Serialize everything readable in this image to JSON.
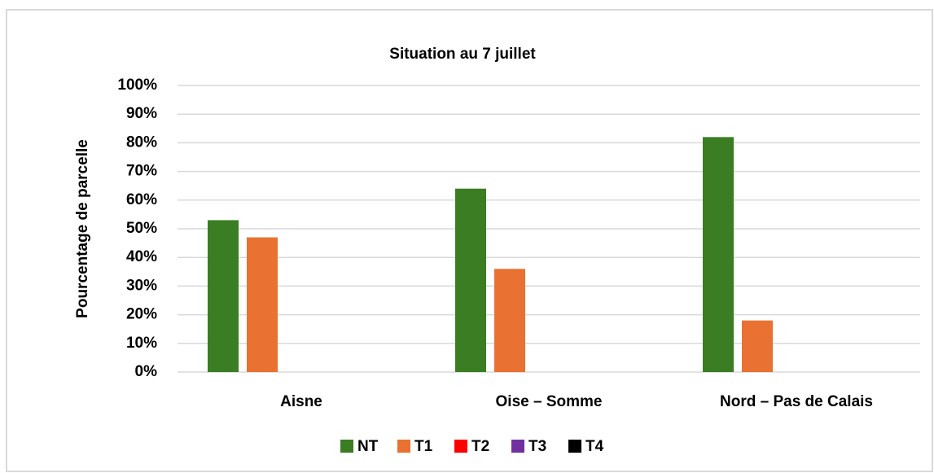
{
  "chart_data": {
    "type": "bar",
    "title": "Situation au 7 juillet",
    "y_label": "Pourcentage de parcelle",
    "categories": [
      "Aisne",
      "Oise – Somme",
      "Nord – Pas de Calais"
    ],
    "series": [
      {
        "name": "NT",
        "color": "#3a7d22",
        "values": [
          53,
          64,
          82
        ]
      },
      {
        "name": "T1",
        "color": "#e97132",
        "values": [
          47,
          36,
          18
        ]
      },
      {
        "name": "T2",
        "color": "#ff0000",
        "values": [
          0,
          0,
          0
        ]
      },
      {
        "name": "T3",
        "color": "#7030a0",
        "values": [
          0,
          0,
          0
        ]
      },
      {
        "name": "T4",
        "color": "#000000",
        "values": [
          0,
          0,
          0
        ]
      }
    ],
    "ylim": [
      0,
      100
    ],
    "yticks": [
      {
        "value": 0,
        "label": "0%"
      },
      {
        "value": 10,
        "label": "10%"
      },
      {
        "value": 20,
        "label": "20%"
      },
      {
        "value": 30,
        "label": "30%"
      },
      {
        "value": 40,
        "label": "40%"
      },
      {
        "value": 50,
        "label": "50%"
      },
      {
        "value": 60,
        "label": "60%"
      },
      {
        "value": 70,
        "label": "70%"
      },
      {
        "value": 80,
        "label": "80%"
      },
      {
        "value": 90,
        "label": "90%"
      },
      {
        "value": 100,
        "label": "100%"
      }
    ],
    "grid": true,
    "legend": "bottom"
  }
}
